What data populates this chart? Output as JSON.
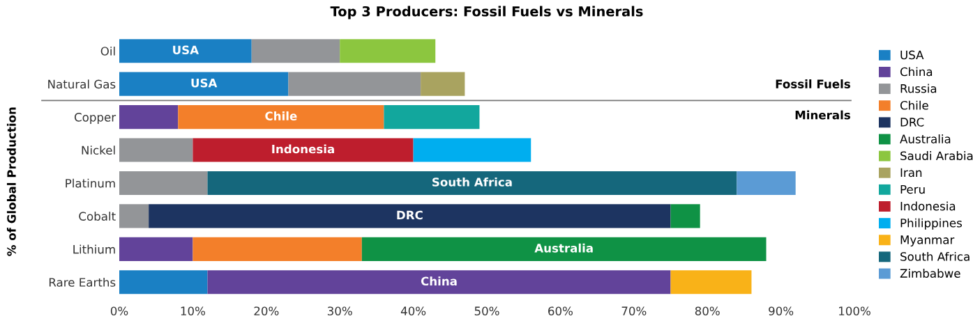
{
  "chart_data": {
    "type": "bar",
    "orientation": "horizontal",
    "stacked": true,
    "title": "Top 3 Producers: Fossil Fuels vs Minerals",
    "ylabel": "% of Global Production",
    "categories": [
      "Oil",
      "Natural Gas",
      "Copper",
      "Nickel",
      "Platinum",
      "Cobalt",
      "Lithium",
      "Rare Earths"
    ],
    "series": [
      {
        "name": "USA",
        "color": "#1a80c4",
        "values": [
          18,
          23,
          null,
          null,
          null,
          null,
          null,
          12
        ]
      },
      {
        "name": "China",
        "color": "#62439a",
        "values": [
          null,
          null,
          8,
          null,
          null,
          null,
          10,
          63
        ]
      },
      {
        "name": "Russia",
        "color": "#939598",
        "values": [
          12,
          18,
          null,
          10,
          12,
          4,
          null,
          null
        ]
      },
      {
        "name": "Chile",
        "color": "#f37f2a",
        "values": [
          null,
          null,
          28,
          null,
          null,
          null,
          23,
          null
        ]
      },
      {
        "name": "DRC",
        "color": "#1d3461",
        "values": [
          null,
          null,
          null,
          null,
          null,
          71,
          null,
          null
        ]
      },
      {
        "name": "Australia",
        "color": "#0f9245",
        "values": [
          null,
          null,
          null,
          null,
          null,
          4,
          55,
          null
        ]
      },
      {
        "name": "Saudi Arabia",
        "color": "#8cc63f",
        "values": [
          13,
          null,
          null,
          null,
          null,
          null,
          null,
          null
        ]
      },
      {
        "name": "Iran",
        "color": "#a9a360",
        "values": [
          null,
          6,
          null,
          null,
          null,
          null,
          null,
          null
        ]
      },
      {
        "name": "Peru",
        "color": "#12a79d",
        "values": [
          null,
          null,
          13,
          null,
          null,
          null,
          null,
          null
        ]
      },
      {
        "name": "Indonesia",
        "color": "#be1e2d",
        "values": [
          null,
          null,
          null,
          30,
          null,
          null,
          null,
          null
        ]
      },
      {
        "name": "Philippines",
        "color": "#00aeef",
        "values": [
          null,
          null,
          null,
          16,
          null,
          null,
          null,
          null
        ]
      },
      {
        "name": "Myanmar",
        "color": "#f9b218",
        "values": [
          null,
          null,
          null,
          null,
          null,
          null,
          null,
          11
        ]
      },
      {
        "name": "South Africa",
        "color": "#15677c",
        "values": [
          null,
          null,
          null,
          null,
          72,
          null,
          null,
          null
        ]
      },
      {
        "name": "Zimbabwe",
        "color": "#5b9bd5",
        "values": [
          null,
          null,
          null,
          null,
          8,
          null,
          null,
          null
        ]
      }
    ],
    "xlim": [
      0,
      100
    ],
    "xticks": [
      {
        "value": 0,
        "label": "0%"
      },
      {
        "value": 10,
        "label": "10%"
      },
      {
        "value": 20,
        "label": "20%"
      },
      {
        "value": 30,
        "label": "30%"
      },
      {
        "value": 40,
        "label": "40%"
      },
      {
        "value": 50,
        "label": "50%"
      },
      {
        "value": 60,
        "label": "60%"
      },
      {
        "value": 70,
        "label": "70%"
      },
      {
        "value": 80,
        "label": "80%"
      },
      {
        "value": 90,
        "label": "90%"
      },
      {
        "value": 100,
        "label": "100%"
      }
    ],
    "annotations": [
      {
        "text": "USA",
        "x": 9,
        "y": "Oil"
      },
      {
        "text": "USA",
        "x": 11.5,
        "y": "Natural Gas"
      },
      {
        "text": "Chile",
        "x": 22,
        "y": "Copper"
      },
      {
        "text": "Indonesia",
        "x": 25,
        "y": "Nickel"
      },
      {
        "text": "South Africa",
        "x": 48,
        "y": "Platinum"
      },
      {
        "text": "DRC",
        "x": 39.5,
        "y": "Cobalt"
      },
      {
        "text": "Australia",
        "x": 60.5,
        "y": "Lithium"
      },
      {
        "text": "China",
        "x": 43.5,
        "y": "Rare Earths"
      },
      "Fossil Fuels",
      "Minerals"
    ],
    "legend": "right"
  }
}
